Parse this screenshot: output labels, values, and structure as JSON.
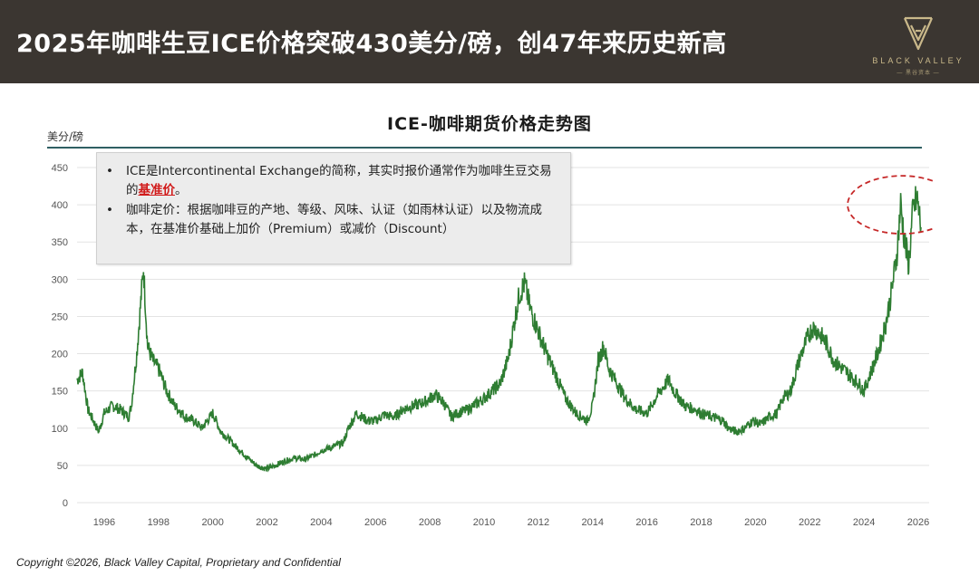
{
  "banner": {
    "title": "2025年咖啡生豆ICE价格突破430美分/磅，创47年来历史新高",
    "logo_text": "BLACK VALLEY",
    "logo_sub": "— 黑谷资本 —",
    "bg_color": "#3b3631",
    "logo_color": "#c9b88a"
  },
  "notes": {
    "bullet": "•",
    "note1_prefix": "ICE是Intercontinental Exchange的简称，其实时报价通常作为咖啡生豆交易的",
    "note1_highlight": "基准价",
    "note1_suffix": "。",
    "note2": "咖啡定价：根据咖啡豆的产地、等级、风味、认证（如雨林认证）以及物流成本，在基准价基础上加价（Premium）或减价（Discount）"
  },
  "footer": {
    "text": "Copyright ©2026, Black Valley Capital, Proprietary and Confidential"
  },
  "chart_data": {
    "type": "line",
    "title": "ICE-咖啡期货价格走势图",
    "ylabel": "美分/磅",
    "xlabel": "",
    "xlim": [
      1995.0,
      2026.4
    ],
    "ylim": [
      0,
      450
    ],
    "yticks": [
      0,
      50,
      100,
      150,
      200,
      250,
      300,
      350,
      400,
      450
    ],
    "xticks": [
      "1996",
      "1998",
      "2000",
      "2002",
      "2004",
      "2006",
      "2008",
      "2010",
      "2012",
      "2014",
      "2016",
      "2018",
      "2020",
      "2022",
      "2024",
      "2026"
    ],
    "grid": "horizontal",
    "line_color": "#2e7d32",
    "annotation": "red dashed ellipse around 2025 peak",
    "series": [
      {
        "x": [
          1995.0,
          1995.2,
          1995.4,
          1995.6,
          1995.8,
          1996.0,
          1996.3,
          1996.6,
          1996.9,
          1997.0,
          1997.2,
          1997.35,
          1997.45,
          1997.6,
          1997.8,
          1998.0,
          1998.3,
          1998.6,
          1999.0,
          1999.3,
          1999.6,
          2000.0,
          2000.3,
          2000.6,
          2001.0,
          2001.3,
          2001.6,
          2002.0,
          2002.3,
          2002.6,
          2003.0,
          2003.4,
          2003.8,
          2004.0,
          2004.4,
          2004.8,
          2005.0,
          2005.3,
          2005.7,
          2006.0,
          2006.3,
          2006.7,
          2007.0,
          2007.4,
          2007.8,
          2008.0,
          2008.2,
          2008.5,
          2008.8,
          2009.0,
          2009.4,
          2009.8,
          2010.0,
          2010.3,
          2010.6,
          2010.9,
          2011.1,
          2011.3,
          2011.5,
          2011.7,
          2012.0,
          2012.3,
          2012.6,
          2013.0,
          2013.4,
          2013.8,
          2014.0,
          2014.2,
          2014.4,
          2014.6,
          2014.9,
          2015.2,
          2015.6,
          2016.0,
          2016.4,
          2016.8,
          2017.0,
          2017.4,
          2017.8,
          2018.0,
          2018.4,
          2018.8,
          2019.0,
          2019.3,
          2019.6,
          2019.9,
          2020.2,
          2020.5,
          2020.8,
          2021.0,
          2021.3,
          2021.6,
          2021.9,
          2022.1,
          2022.3,
          2022.6,
          2022.9,
          2023.2,
          2023.5,
          2023.8,
          2024.0,
          2024.2,
          2024.5,
          2024.8,
          2025.0,
          2025.2,
          2025.35,
          2025.5,
          2025.65,
          2025.8,
          2025.95,
          2026.1
        ],
        "y": [
          165,
          175,
          125,
          110,
          95,
          120,
          130,
          125,
          115,
          130,
          200,
          270,
          315,
          210,
          190,
          180,
          150,
          130,
          115,
          110,
          100,
          120,
          95,
          85,
          70,
          60,
          50,
          45,
          50,
          55,
          60,
          58,
          65,
          70,
          75,
          80,
          100,
          120,
          110,
          110,
          118,
          115,
          125,
          130,
          135,
          140,
          145,
          135,
          115,
          120,
          125,
          135,
          140,
          150,
          160,
          195,
          240,
          280,
          295,
          260,
          230,
          200,
          175,
          140,
          120,
          110,
          130,
          190,
          210,
          180,
          160,
          140,
          125,
          120,
          145,
          165,
          150,
          130,
          125,
          120,
          115,
          110,
          100,
          95,
          100,
          110,
          105,
          115,
          120,
          140,
          150,
          190,
          220,
          235,
          230,
          215,
          190,
          180,
          170,
          160,
          150,
          170,
          200,
          240,
          280,
          330,
          400,
          350,
          320,
          390,
          410,
          370
        ]
      }
    ]
  }
}
